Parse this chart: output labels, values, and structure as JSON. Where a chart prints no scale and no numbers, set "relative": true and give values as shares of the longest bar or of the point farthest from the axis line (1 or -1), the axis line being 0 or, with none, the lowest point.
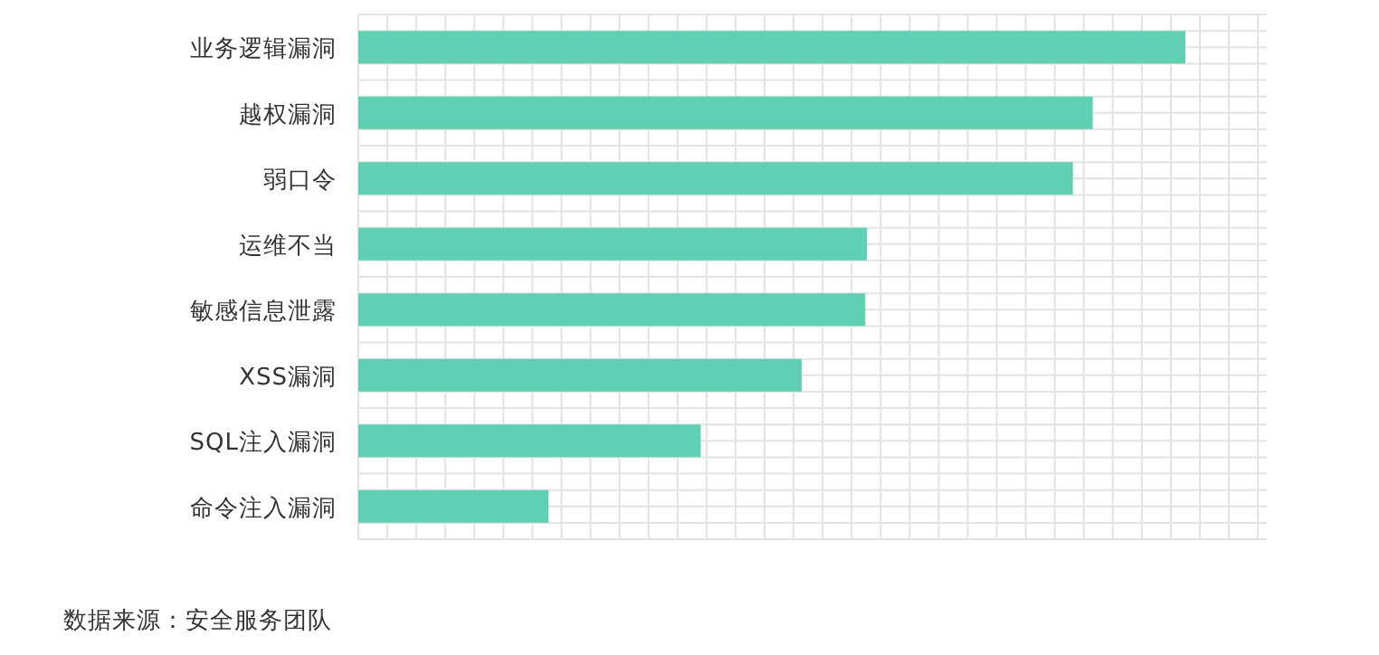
{
  "chart_data": {
    "type": "bar",
    "orientation": "horizontal",
    "relative": true,
    "grid": true,
    "color": "#61cfb1",
    "categories": [
      "业务逻辑漏洞",
      "越权漏洞",
      "弱口令",
      "运维不当",
      "敏感信息泄露",
      "XSS漏洞",
      "SQL注入漏洞",
      "命令注入漏洞"
    ],
    "values": [
      1,
      0.888,
      0.864,
      0.615,
      0.613,
      0.536,
      0.414,
      0.23
    ],
    "annotations": [
      "数据来源：安全服务团队"
    ]
  }
}
